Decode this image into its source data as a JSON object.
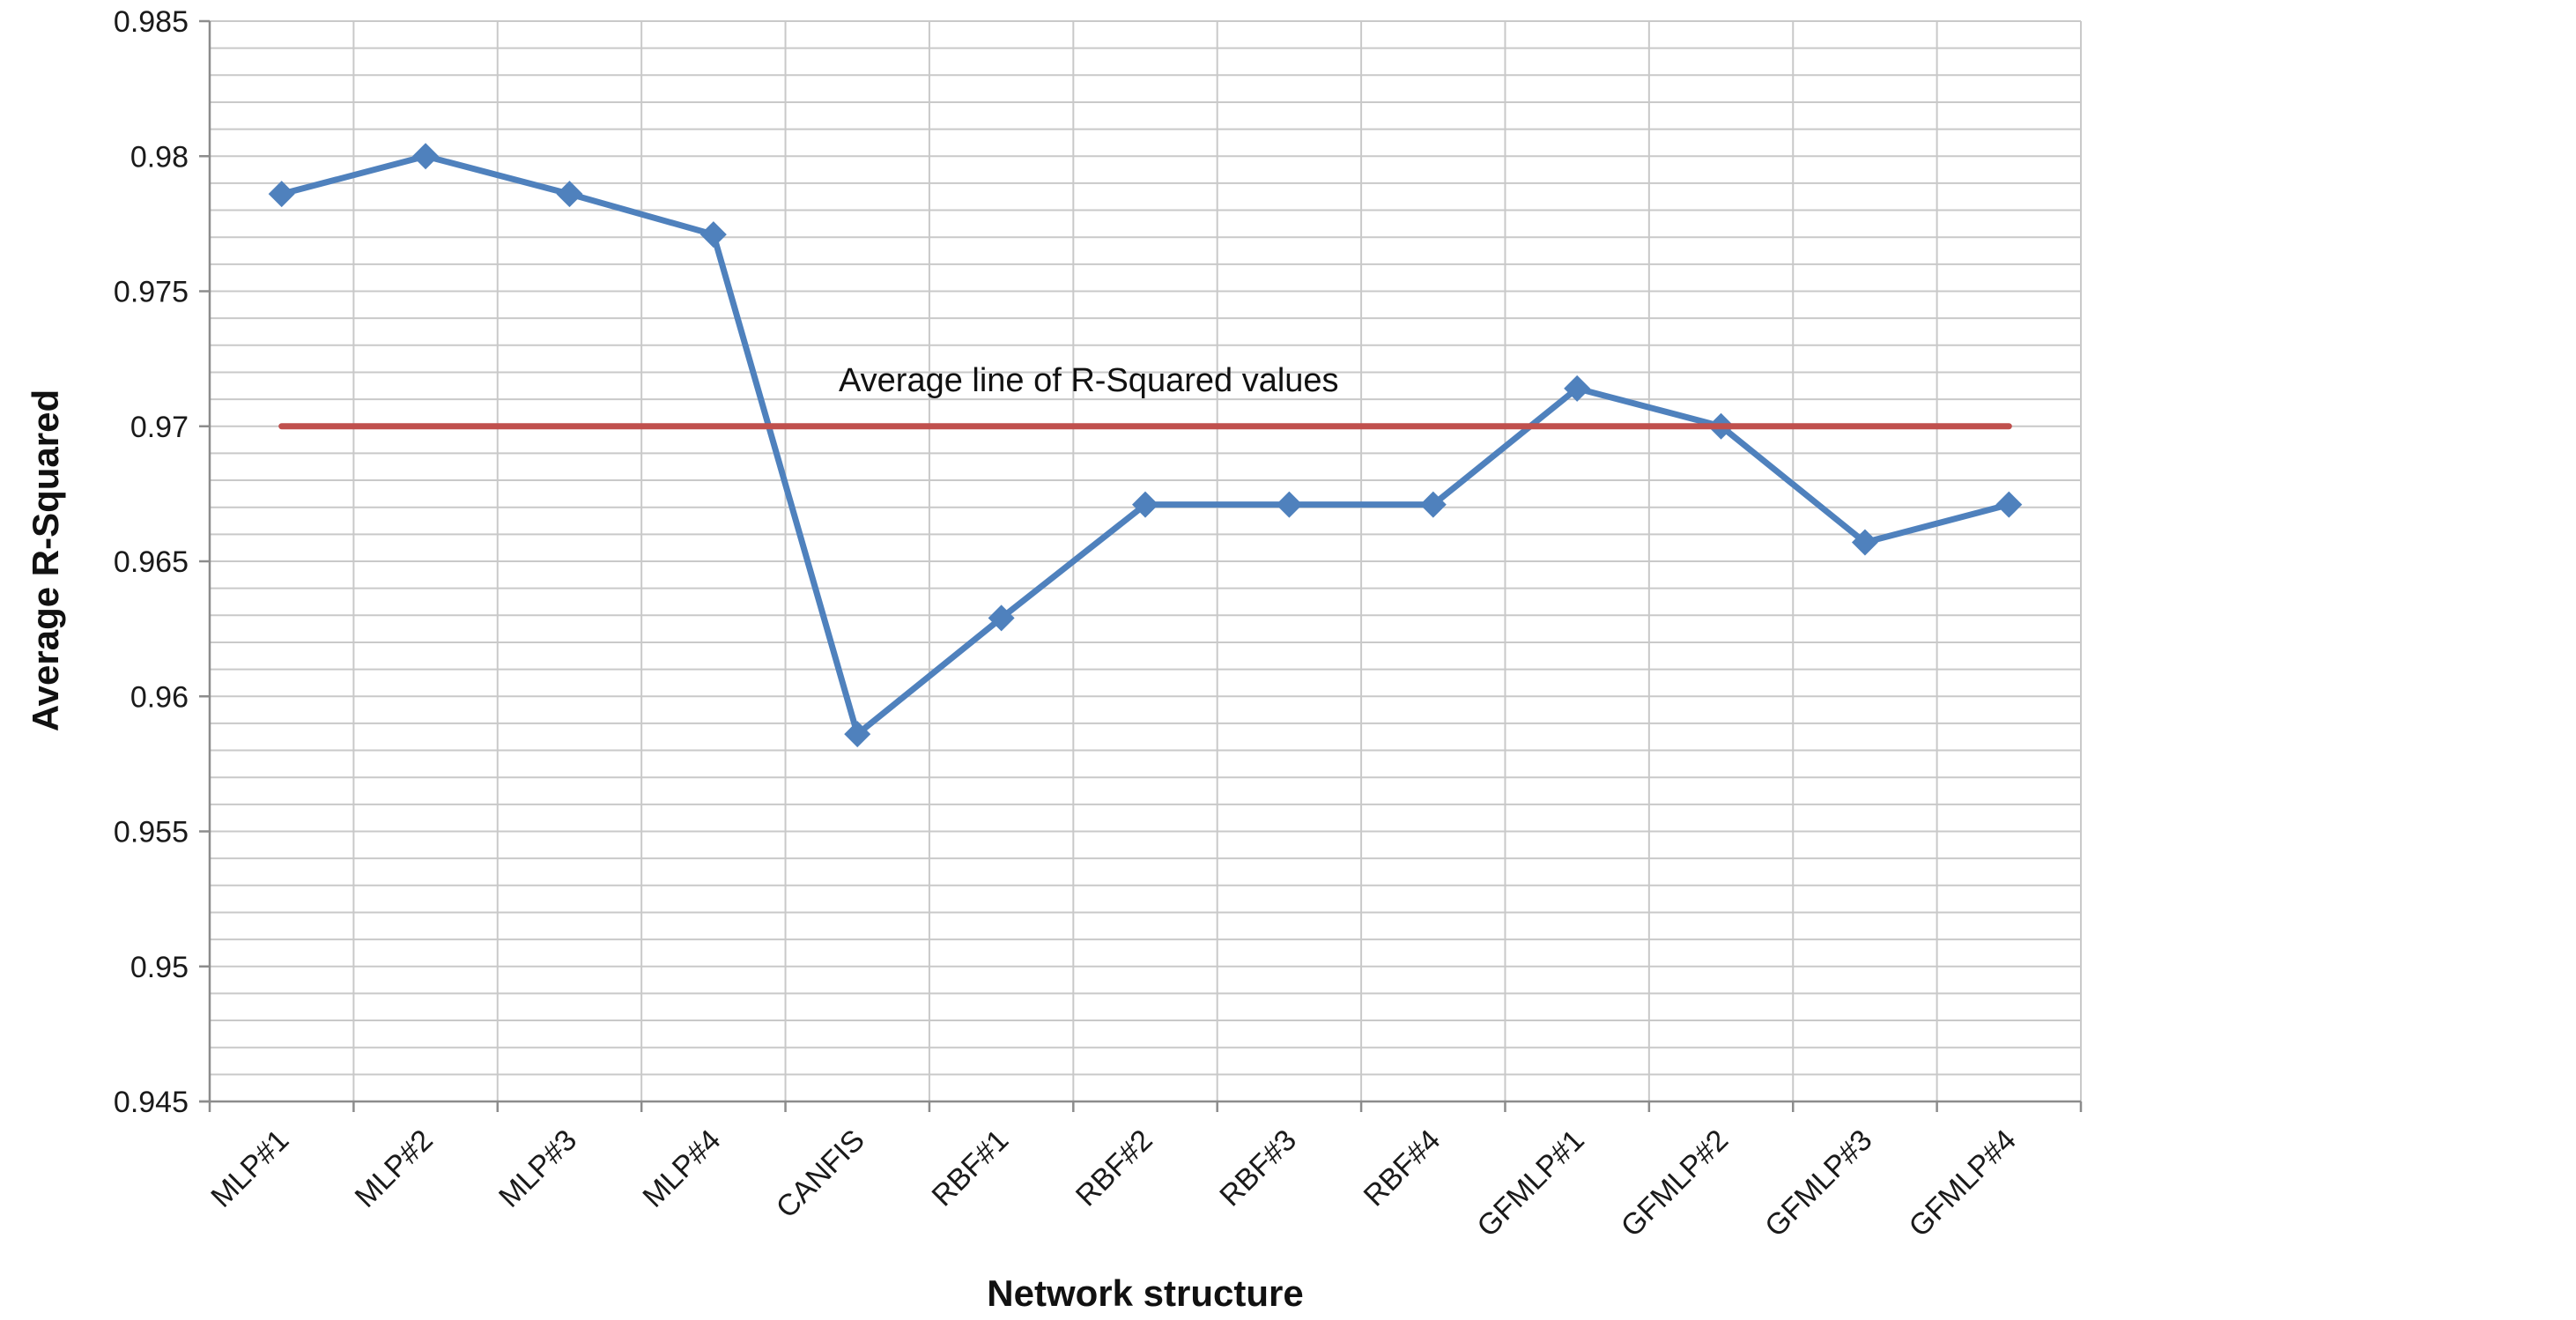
{
  "chart_data": {
    "type": "line",
    "xlabel": "Network structure",
    "ylabel": "Average R-Squared",
    "ylim": [
      0.945,
      0.985
    ],
    "ytick_labels": [
      "0.945",
      "0.95",
      "0.955",
      "0.96",
      "0.965",
      "0.97",
      "0.975",
      "0.98",
      "0.985"
    ],
    "categories": [
      "MLP#1",
      "MLP#2",
      "MLP#3",
      "MLP#4",
      "CANFIS",
      "RBF#1",
      "RBF#2",
      "RBF#3",
      "RBF#4",
      "GFMLP#1",
      "GFMLP#2",
      "GFMLP#3",
      "GFMLP#4"
    ],
    "grid": true,
    "series": [
      {
        "values": [
          0.9786,
          0.98,
          0.9786,
          0.9771,
          0.9586,
          0.9629,
          0.9671,
          0.9671,
          0.9671,
          0.9714,
          0.97,
          0.9657,
          0.9671
        ],
        "color": "#4f81bd",
        "marker": "diamond"
      },
      {
        "values": [
          0.97,
          0.97,
          0.97,
          0.97,
          0.97,
          0.97,
          0.97,
          0.97,
          0.97,
          0.97,
          0.97,
          0.97,
          0.97
        ],
        "color": "#c0504d",
        "marker": "none"
      }
    ],
    "annotations": [
      {
        "text": "Average line of R-Squared values"
      }
    ]
  }
}
